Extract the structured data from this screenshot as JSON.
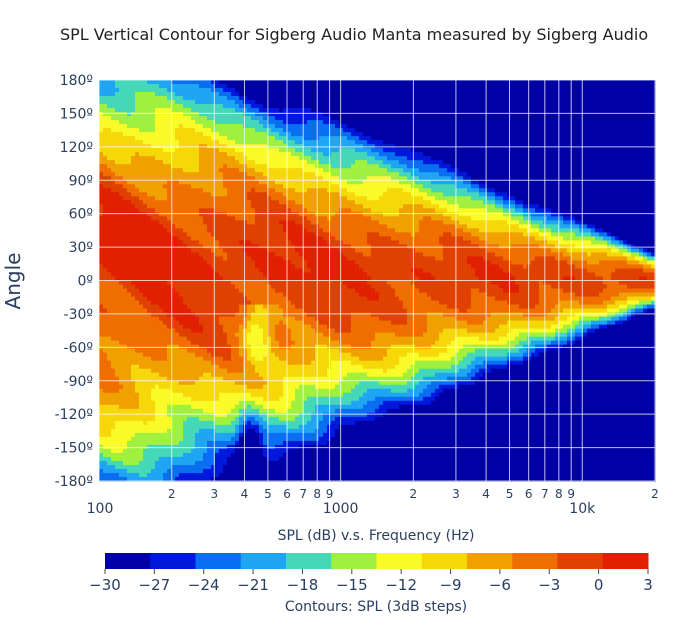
{
  "chart_data": {
    "type": "heatmap",
    "subtype": "contour",
    "title": "SPL Vertical Contour for Sigberg Audio Manta measured by Sigberg Audio",
    "xlabel": "SPL (dB) v.s. Frequency (Hz)",
    "ylabel": "Angle",
    "x_scale": "log",
    "xlim": [
      100,
      20000
    ],
    "ylim": [
      -180,
      180
    ],
    "x_major_ticks": [
      {
        "value": 100,
        "label": "100"
      },
      {
        "value": 1000,
        "label": "1000"
      },
      {
        "value": 10000,
        "label": "10k"
      }
    ],
    "x_minor_ticks": [
      {
        "value": 200,
        "label": "2"
      },
      {
        "value": 300,
        "label": "3"
      },
      {
        "value": 400,
        "label": "4"
      },
      {
        "value": 500,
        "label": "5"
      },
      {
        "value": 600,
        "label": "6"
      },
      {
        "value": 700,
        "label": "7"
      },
      {
        "value": 800,
        "label": "8"
      },
      {
        "value": 900,
        "label": "9"
      },
      {
        "value": 2000,
        "label": "2"
      },
      {
        "value": 3000,
        "label": "3"
      },
      {
        "value": 4000,
        "label": "4"
      },
      {
        "value": 5000,
        "label": "5"
      },
      {
        "value": 6000,
        "label": "6"
      },
      {
        "value": 7000,
        "label": "7"
      },
      {
        "value": 8000,
        "label": "8"
      },
      {
        "value": 9000,
        "label": "9"
      },
      {
        "value": 20000,
        "label": "2"
      }
    ],
    "y_ticks": [
      {
        "value": 180,
        "label": "180º"
      },
      {
        "value": 150,
        "label": "150º"
      },
      {
        "value": 120,
        "label": "120º"
      },
      {
        "value": 90,
        "label": "90º"
      },
      {
        "value": 60,
        "label": "60º"
      },
      {
        "value": 30,
        "label": "30º"
      },
      {
        "value": 0,
        "label": "0º"
      },
      {
        "value": -30,
        "label": "-30º"
      },
      {
        "value": -60,
        "label": "-60º"
      },
      {
        "value": -90,
        "label": "-90º"
      },
      {
        "value": -120,
        "label": "-120º"
      },
      {
        "value": -150,
        "label": "-150º"
      },
      {
        "value": -180,
        "label": "-180º"
      }
    ],
    "z_label": "Contours: SPL (3dB steps)",
    "z_range": [
      -30,
      3
    ],
    "z_step": 3,
    "colorbar_ticks": [
      {
        "value": -30,
        "label": "−30"
      },
      {
        "value": -27,
        "label": "−27"
      },
      {
        "value": -24,
        "label": "−24"
      },
      {
        "value": -21,
        "label": "−21"
      },
      {
        "value": -18,
        "label": "−18"
      },
      {
        "value": -15,
        "label": "−15"
      },
      {
        "value": -12,
        "label": "−12"
      },
      {
        "value": -9,
        "label": "−9"
      },
      {
        "value": -6,
        "label": "−6"
      },
      {
        "value": -3,
        "label": "−3"
      },
      {
        "value": 0,
        "label": "0"
      },
      {
        "value": 3,
        "label": "3"
      }
    ],
    "colorscale": [
      "#0000a6",
      "#0018dc",
      "#0a6ef0",
      "#1ea6f5",
      "#44d8b8",
      "#a0f040",
      "#fafa28",
      "#f5d70a",
      "#f0a000",
      "#f06e00",
      "#e04000",
      "#e02000"
    ],
    "contour_color": "#8a1800",
    "grid": true,
    "legend": "colorbar-bottom"
  }
}
